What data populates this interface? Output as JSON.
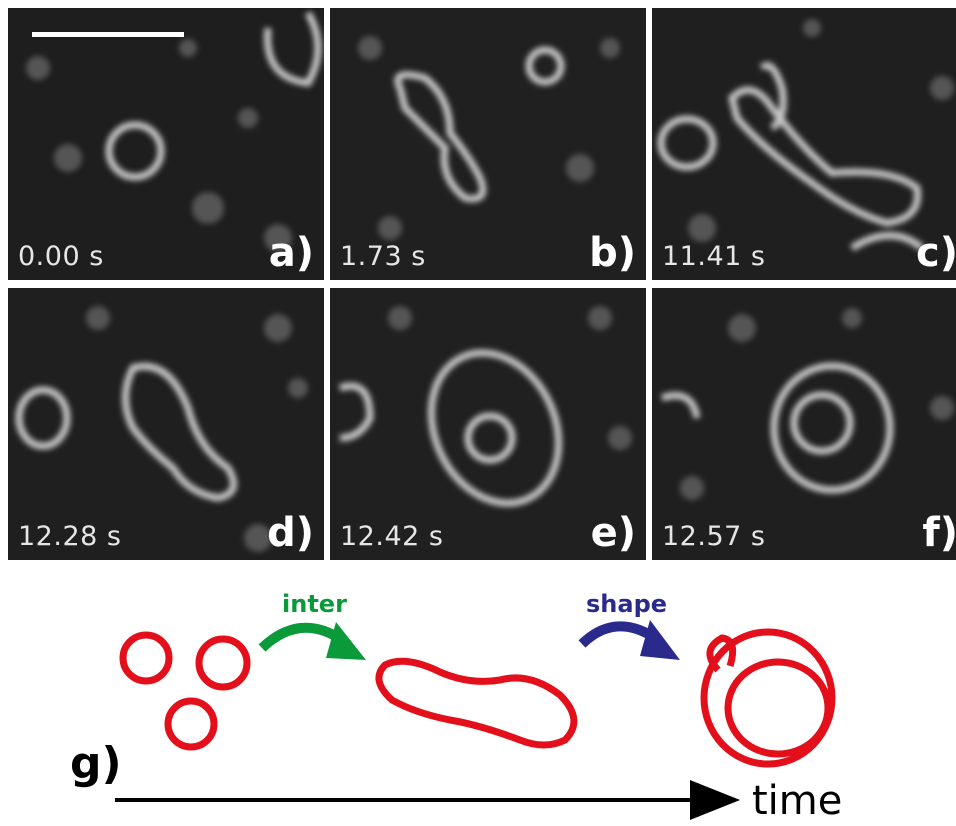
{
  "panels": [
    {
      "label": "a)",
      "time": "0.00 s"
    },
    {
      "label": "b)",
      "time": "1.73 s"
    },
    {
      "label": "c)",
      "time": "11.41 s"
    },
    {
      "label": "d)",
      "time": "12.28 s"
    },
    {
      "label": "e)",
      "time": "12.42 s"
    },
    {
      "label": "f)",
      "time": "12.57 s"
    }
  ],
  "schematic": {
    "label": "g)",
    "arrow1_label": "inter",
    "arrow2_label": "shape",
    "axis_label": "time",
    "colors": {
      "vesicle": "#e3101c",
      "inter_arrow": "#0a9a3a",
      "shape_arrow": "#2a2a8c",
      "axis": "#000000"
    }
  }
}
